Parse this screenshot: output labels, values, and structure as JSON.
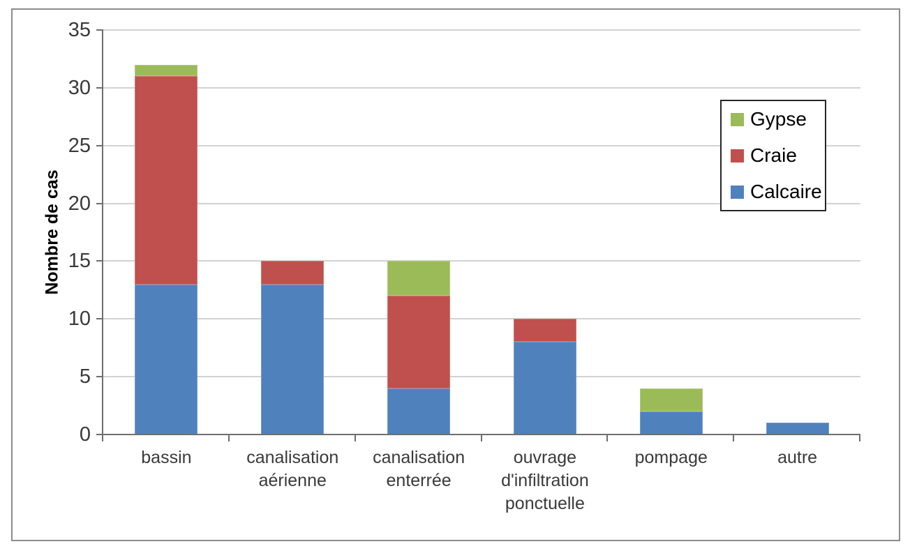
{
  "chart_data": {
    "type": "bar",
    "stacked": true,
    "title": "",
    "xlabel": "",
    "ylabel": "Nombre de cas",
    "ylim": [
      0,
      35
    ],
    "ytick_step": 5,
    "grid": true,
    "legend_position": "upper-right",
    "legend_order": [
      "Gypse",
      "Craie",
      "Calcaire"
    ],
    "categories": [
      "bassin",
      "canalisation aérienne",
      "canalisation enterrée",
      "ouvrage d'infiltration ponctuelle",
      "pompage",
      "autre"
    ],
    "category_label_lines": [
      [
        "bassin"
      ],
      [
        "canalisation",
        "aérienne"
      ],
      [
        "canalisation",
        "enterrée"
      ],
      [
        "ouvrage",
        "d'infiltration",
        "ponctuelle"
      ],
      [
        "pompage"
      ],
      [
        "autre"
      ]
    ],
    "series": [
      {
        "name": "Calcaire",
        "color": "#4F81BD",
        "values": [
          13,
          13,
          4,
          8,
          2,
          1
        ]
      },
      {
        "name": "Craie",
        "color": "#C0504D",
        "values": [
          18,
          2,
          8,
          2,
          0,
          0
        ]
      },
      {
        "name": "Gypse",
        "color": "#9BBB59",
        "values": [
          1,
          0,
          3,
          0,
          2,
          0
        ]
      }
    ],
    "stack_totals": [
      32,
      15,
      15,
      10,
      4,
      1
    ]
  },
  "styles": {
    "background": "#FFFFFF",
    "frame_border_color": "#8C8C8C",
    "grid_color": "#D2D2D2",
    "axis_color": "#6E6E6E",
    "tick_label_color": "#3A3A3A",
    "category_label_color": "#3A3A3A",
    "legend_border_color": "#262626",
    "legend_text_color": "#000000"
  }
}
